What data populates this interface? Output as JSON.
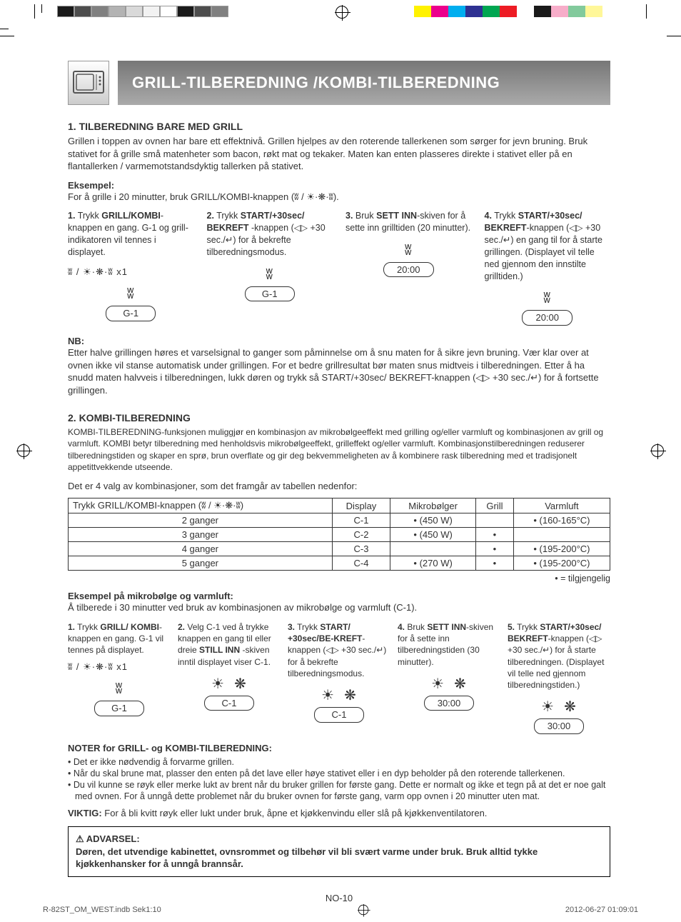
{
  "header_title": "GRILL-TILBEREDNING /KOMBI-TILBEREDNING",
  "section1_title": "1.  TILBEREDNING BARE MED GRILL",
  "section1_para": "Grillen i toppen av ovnen har bare ett effektnivå. Grillen hjelpes av den roterende tallerkenen som sørger for jevn bruning. Bruk stativet for å grille små matenheter som bacon, røkt mat og tekaker. Maten kan enten plasseres direkte i stativet eller på en flantallerken / varmemotstandsdyktig tallerken på stativet.",
  "eksempel_label": "Eksempel:",
  "eksempel_line": "For å grille i 20 minutter, bruk GRILL/KOMBI-knappen (ʬ / ☀·❋·ʬ).",
  "icon_line_x1": "ʬ / ☀·❋·ʬ x1",
  "step1": {
    "n": "1.",
    "txt1": "Trykk ",
    "b1": "GRILL/KOMBI",
    "txt2": "-knappen en gang. G-1 og grill-indikatoren vil tennes i displayet.",
    "disp": "G-1"
  },
  "step2": {
    "n": "2.",
    "txt1": "Trykk ",
    "b1": "START/+30sec/ BEKREFT",
    "txt2": " -knappen (◁▷ +30 sec./↵) for å bekrefte tilberedningsmodus.",
    "disp": "G-1"
  },
  "step3": {
    "n": "3.",
    "txt1": "Bruk ",
    "b1": "SETT INN",
    "txt2": "-skiven for å sette inn grilltiden (20 minutter).",
    "disp": "20:00"
  },
  "step4": {
    "n": "4.",
    "txt1": "Trykk ",
    "b1": "START/+30sec/ BEKREFT",
    "txt2": "-knappen (◁▷ +30 sec./↵) en gang til for å starte grillingen. (Displayet vil telle ned gjennom den innstilte grilltiden.)",
    "disp": "20:00"
  },
  "nb_label": "NB:",
  "nb_para": "Etter halve grillingen høres et varselsignal to ganger som påminnelse om å snu maten for å sikre jevn bruning. Vær klar over at ovnen ikke vil stanse automatisk under grillingen. For et bedre grillresultat bør maten snus midtveis i tilberedningen. Etter å ha snudd maten halvveis i tilberedningen, lukk døren og trykk så START/+30sec/ BEKREFT-knappen (◁▷ +30 sec./↵) for å fortsette grillingen.",
  "section2_title": "2.  KOMBI-TILBEREDNING",
  "section2_para": "KOMBI-TILBEREDNING-funksjonen muliggjør  en kombinasjon av mikrobølgeeffekt med grilling og/eller varmluft og kombinasjonen av grill og varmluft. KOMBI betyr tilberedning med henholdsvis mikrobølgeeffekt, grilleffekt og/eller varmluft. Kombinasjonstilberedningen reduserer tilberedningstiden og skaper en sprø, brun overflate og gir deg bekvemmeligheten av å kombinere rask tilberedning med et tradisjonelt appetittvekkende utseende.",
  "table_intro": "Det er 4 valg av kombinasjoner, som det framgår av tabellen nedenfor:",
  "table": {
    "head_press": "Trykk GRILL/KOMBI-knappen (ʬ / ☀·❋·ʬ)",
    "head_display": "Display",
    "head_micro": "Mikrobølger",
    "head_grill": "Grill",
    "head_conv": "Varmluft",
    "rows": [
      {
        "press": "2 ganger",
        "disp": "C-1",
        "micro": "• (450 W)",
        "grill": "",
        "conv": "• (160-165°C)"
      },
      {
        "press": "3 ganger",
        "disp": "C-2",
        "micro": "• (450 W)",
        "grill": "•",
        "conv": ""
      },
      {
        "press": "4 ganger",
        "disp": "C-3",
        "micro": "",
        "grill": "•",
        "conv": "• (195-200°C)"
      },
      {
        "press": "5 ganger",
        "disp": "C-4",
        "micro": "• (270 W)",
        "grill": "•",
        "conv": "• (195-200°C)"
      }
    ]
  },
  "tilgjengelig": "• = tilgjengelig",
  "ex2_title": "Eksempel på mikrobølge og varmluft:",
  "ex2_line": "Å tilberede i 30 minutter ved bruk av kombinasjonen av mikrobølge og varmluft (C-1).",
  "s5_1": {
    "n": "1.",
    "t1": "Trykk ",
    "b": "GRILL/ KOMBI",
    "t2": "-knappen en gang. G-1 vil tennes på displayet.",
    "disp": "G-1"
  },
  "s5_2": {
    "n": "2.",
    "t1": "Velg C-1 ved å trykke knappen en gang til eller dreie ",
    "b": "STILL INN",
    "t2": " -skiven inntil displayet viser C-1.",
    "disp": "C-1"
  },
  "s5_3": {
    "n": "3.",
    "t1": "Trykk ",
    "b": "START/ +30sec/BE-KREFT",
    "t2": "-knappen (◁▷ +30 sec./↵) for å bekrefte tilberedningsmodus.",
    "disp": "C-1"
  },
  "s5_4": {
    "n": "4.",
    "t1": "Bruk ",
    "b": "SETT INN",
    "t2": "-skiven for å sette inn tilberedningstiden (30 minutter).",
    "disp": "30:00"
  },
  "s5_5": {
    "n": "5.",
    "t1": "Trykk ",
    "b": "START/+30sec/ BEKREFT",
    "t2": "-knappen (◁▷ +30 sec./↵) for å starte tilberedningen. (Displayet vil telle ned gjennom tilberedningstiden.)",
    "disp": "30:00"
  },
  "notes_title": "NOTER for GRILL- og KOMBI-TILBEREDNING:",
  "notes": [
    "Det er ikke nødvendig å forvarme grillen.",
    "Når du skal brune mat, plasser den enten på det lave eller høye stativet eller i en dyp beholder på den roterende tallerkenen.",
    "Du vil kunne se røyk eller merke lukt av brent når du bruker grillen for første gang. Dette er normalt og ikke et tegn på at det er noe galt med ovnen. For å unngå dette problemet når du bruker ovnen for første gang, varm opp ovnen i 20 minutter uten mat."
  ],
  "viktig_label": "VIKTIG:",
  "viktig_text": " For å bli kvitt røyk eller lukt under bruk, åpne et kjøkkenvindu eller slå på kjøkkenventilatoren.",
  "warn_title": "⚠ ADVARSEL:",
  "warn_text": "Døren, det utvendige kabinettet, ovnsrommet og tilbehør vil bli svært varme under bruk. Bruk alltid tykke kjøkkenhansker for å unngå brannsår.",
  "page_num": "NO-10",
  "footer_left": "R-82ST_OM_WEST.indb   Sek1:10",
  "footer_right": "2012-06-27   01:09:01",
  "colorbar_left": [
    "#1a1a1a",
    "#4d4d4d",
    "#808080",
    "#b3b3b3",
    "#d9d9d9",
    "#f2f2f2",
    "#ffffff",
    "#1a1a1a",
    "#4d4d4d",
    "#808080"
  ],
  "colorbar_right": [
    "#fff200",
    "#ec008c",
    "#00aeef",
    "#2e3192",
    "#00a651",
    "#ed1c24",
    "#ffffff",
    "#1a1a1a",
    "#f7adc9",
    "#82ca9c",
    "#fff799"
  ]
}
